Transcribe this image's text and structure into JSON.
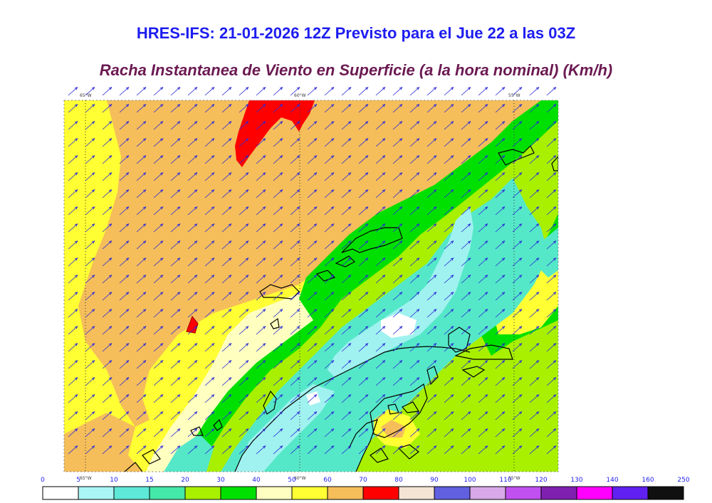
{
  "header": {
    "title": "HRES-IFS: 21-01-2026 12Z Previsto para el Jue 22 a las 03Z",
    "subtitle": "Racha Instantanea de Viento en Superficie (a la hora nominal) (Km/h)"
  },
  "map": {
    "lon_labels": [
      "65°W",
      "60°W",
      "55°W"
    ],
    "fill_colors": {
      "yellow": "#ffff33",
      "orange": "#f5be5a",
      "light_yellow": "#ffffc0",
      "green": "#00e000",
      "light_green": "#a8ef00",
      "teal": "#55e8c8",
      "cyan_light": "#a0f2f0",
      "red": "#ff0000",
      "white": "#ffffff"
    },
    "wind_vector_color": "#2a2ad8",
    "coastline_color": "#000000"
  },
  "legend": {
    "labels": [
      "0",
      "5",
      "10",
      "15",
      "20",
      "30",
      "40",
      "50",
      "60",
      "70",
      "80",
      "90",
      "100",
      "110",
      "120",
      "130",
      "140",
      "160",
      "250"
    ],
    "colors": [
      "#ffffff",
      "#aaf5f5",
      "#5ee8d8",
      "#44e8a8",
      "#a8f000",
      "#00e000",
      "#ffffc0",
      "#ffff33",
      "#f5be5a",
      "#ff0000",
      "#f4e4d4",
      "#6060e0",
      "#d8a8e8",
      "#c050f0",
      "#8020b0",
      "#ff00ff",
      "#6020f0",
      "#101010"
    ]
  }
}
